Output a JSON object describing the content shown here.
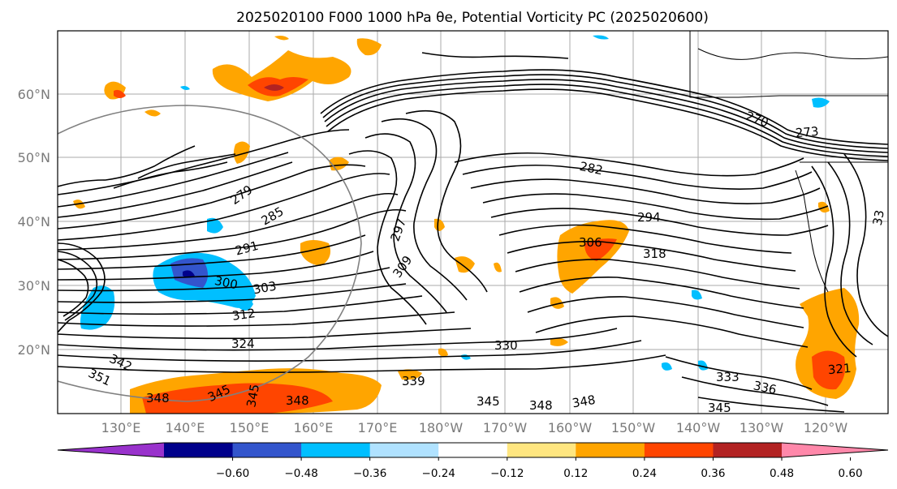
{
  "title": "2025020100 F000 1000 hPa θe, Potential Vorticity PC (2025020600)",
  "lat_labels": [
    "60°N",
    "50°N",
    "40°N",
    "30°N",
    "20°N"
  ],
  "lon_labels": [
    "130°E",
    "140°E",
    "150°E",
    "160°E",
    "170°E",
    "180°W",
    "170°W",
    "160°W",
    "150°W",
    "140°W",
    "130°W",
    "120°W"
  ],
  "colorbar": {
    "colors": [
      "#9932cc",
      "#00008b",
      "#3355cc",
      "#00bfff",
      "#b0e2ff",
      "#ffffff",
      "#ffe680",
      "#ffa500",
      "#ff4500",
      "#b22222",
      "#ff88aa"
    ],
    "tick_labels": [
      "−0.60",
      "−0.48",
      "−0.36",
      "−0.24",
      "−0.12",
      "0.12",
      "0.24",
      "0.36",
      "0.48",
      "0.60"
    ]
  },
  "contour_labels": [
    {
      "text": "279"
    },
    {
      "text": "285"
    },
    {
      "text": "291"
    },
    {
      "text": "300"
    },
    {
      "text": "303"
    },
    {
      "text": "312"
    },
    {
      "text": "324"
    },
    {
      "text": "342"
    },
    {
      "text": "351"
    },
    {
      "text": "348"
    },
    {
      "text": "345"
    },
    {
      "text": "345"
    },
    {
      "text": "348"
    },
    {
      "text": "339"
    },
    {
      "text": "345"
    },
    {
      "text": "348"
    },
    {
      "text": "348"
    },
    {
      "text": "330"
    },
    {
      "text": "297"
    },
    {
      "text": "309"
    },
    {
      "text": "306"
    },
    {
      "text": "318"
    },
    {
      "text": "294"
    },
    {
      "text": "282"
    },
    {
      "text": "270"
    },
    {
      "text": "273"
    },
    {
      "text": "333"
    },
    {
      "text": "336"
    },
    {
      "text": "345"
    },
    {
      "text": "321"
    },
    {
      "text": "33"
    }
  ]
}
